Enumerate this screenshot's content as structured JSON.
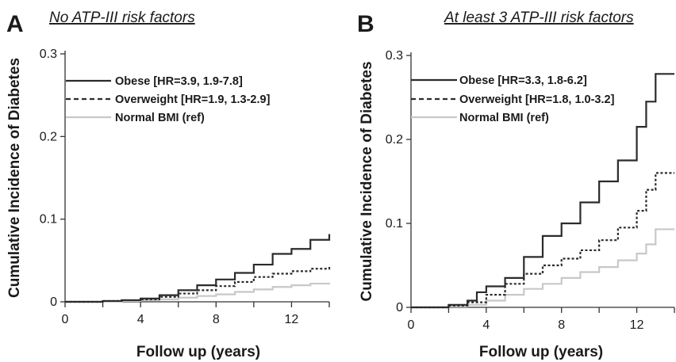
{
  "colors": {
    "obese": "#2b2b2b",
    "overweight": "#2b2b2b",
    "normal": "#c8c8c8",
    "text": "#1a1a1a"
  },
  "chart_data": [
    {
      "type": "line",
      "panel_letter": "A",
      "title": "No ATP-III risk factors",
      "xlabel": "Follow up (years)",
      "ylabel": "Cumulative Incidence of Diabetes",
      "xlim": [
        0,
        14
      ],
      "ylim": [
        0,
        0.3
      ],
      "xticks": [
        0,
        4,
        8,
        12
      ],
      "yticks": [
        0,
        0.1,
        0.2,
        0.3
      ],
      "ytick_labels": [
        "0",
        "0.1",
        "0.2",
        "0.3"
      ],
      "xtick_labels": [
        "0",
        "4",
        "8",
        "12"
      ],
      "grid": false,
      "legend_position": "top-left",
      "series": [
        {
          "name": "Obese [HR=3.9, 1.9-7.8]",
          "style": "solid",
          "color_key": "obese",
          "x": [
            0,
            2,
            3,
            4,
            5,
            6,
            7,
            8,
            9,
            10,
            11,
            12,
            13,
            14
          ],
          "y": [
            0,
            0.001,
            0.002,
            0.004,
            0.008,
            0.014,
            0.02,
            0.027,
            0.035,
            0.045,
            0.058,
            0.064,
            0.075,
            0.082
          ]
        },
        {
          "name": "Overweight [HR=1.9, 1.3-2.9]",
          "style": "dashed",
          "color_key": "overweight",
          "x": [
            0,
            2,
            3,
            4,
            5,
            6,
            7,
            8,
            9,
            10,
            11,
            12,
            13,
            14
          ],
          "y": [
            0,
            0.001,
            0.002,
            0.003,
            0.006,
            0.01,
            0.014,
            0.019,
            0.024,
            0.03,
            0.034,
            0.037,
            0.04,
            0.043
          ]
        },
        {
          "name": "Normal BMI (ref)",
          "style": "solid",
          "color_key": "normal",
          "x": [
            0,
            2,
            3,
            4,
            5,
            6,
            7,
            8,
            9,
            10,
            11,
            12,
            13,
            14
          ],
          "y": [
            0,
            0.0005,
            0.001,
            0.002,
            0.003,
            0.005,
            0.007,
            0.009,
            0.012,
            0.015,
            0.018,
            0.02,
            0.022,
            0.023
          ]
        }
      ]
    },
    {
      "type": "line",
      "panel_letter": "B",
      "title": "At least 3 ATP-III risk factors",
      "xlabel": "Follow up (years)",
      "ylabel": "Cumulative Incidence of Diabetes",
      "xlim": [
        0,
        14
      ],
      "ylim": [
        0,
        0.3
      ],
      "xticks": [
        0,
        4,
        8,
        12
      ],
      "yticks": [
        0,
        0.1,
        0.2,
        0.3
      ],
      "ytick_labels": [
        "0",
        "0.1",
        "0.2",
        "0.3"
      ],
      "xtick_labels": [
        "0",
        "4",
        "8",
        "12"
      ],
      "grid": false,
      "legend_position": "top-left",
      "series": [
        {
          "name": "Obese [HR=3.3, 1.8-6.2]",
          "style": "solid",
          "color_key": "obese",
          "x": [
            0,
            2,
            3,
            3.5,
            4,
            5,
            6,
            7,
            8,
            9,
            10,
            11,
            12,
            12.5,
            13,
            14
          ],
          "y": [
            0,
            0.003,
            0.008,
            0.018,
            0.025,
            0.035,
            0.06,
            0.085,
            0.1,
            0.125,
            0.15,
            0.175,
            0.215,
            0.245,
            0.278,
            0.278
          ]
        },
        {
          "name": "Overweight [HR=1.8, 1.0-3.2]",
          "style": "dashed",
          "color_key": "overweight",
          "x": [
            0,
            2,
            3,
            4,
            5,
            6,
            7,
            8,
            9,
            10,
            11,
            12,
            12.5,
            13,
            14
          ],
          "y": [
            0,
            0.002,
            0.006,
            0.015,
            0.028,
            0.04,
            0.05,
            0.058,
            0.068,
            0.08,
            0.095,
            0.115,
            0.14,
            0.16,
            0.16
          ]
        },
        {
          "name": "Normal BMI (ref)",
          "style": "solid",
          "color_key": "normal",
          "x": [
            0,
            2,
            3,
            4,
            5,
            6,
            7,
            8,
            9,
            10,
            11,
            12,
            12.5,
            13,
            14
          ],
          "y": [
            0,
            0.001,
            0.003,
            0.008,
            0.015,
            0.022,
            0.028,
            0.035,
            0.042,
            0.048,
            0.056,
            0.064,
            0.075,
            0.093,
            0.093
          ]
        }
      ]
    }
  ]
}
